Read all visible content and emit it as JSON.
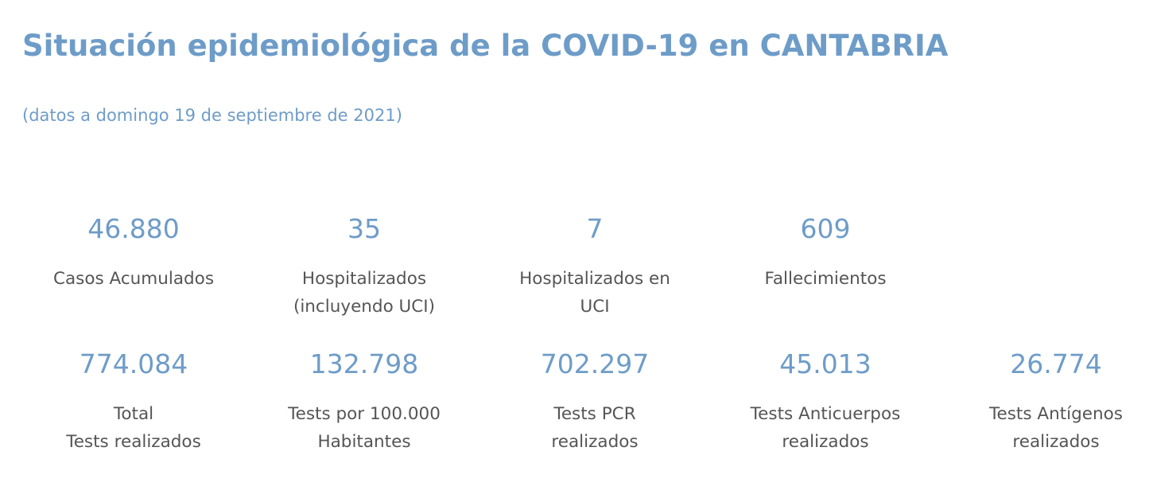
{
  "header": {
    "title": "Situación epidemiológica de la COVID-19 en CANTABRIA",
    "subtitle": "(datos a domingo 19 de septiembre de 2021)"
  },
  "stats": {
    "row1": [
      {
        "value": "46.880",
        "label_line1": "Casos Acumulados",
        "label_line2": ""
      },
      {
        "value": "35",
        "label_line1": "Hospitalizados",
        "label_line2": "(incluyendo UCI)"
      },
      {
        "value": "7",
        "label_line1": "Hospitalizados en",
        "label_line2": "UCI"
      },
      {
        "value": "609",
        "label_line1": "Fallecimientos",
        "label_line2": ""
      }
    ],
    "row2": [
      {
        "value": "774.084",
        "label_line1": "Total",
        "label_line2": "Tests realizados"
      },
      {
        "value": "132.798",
        "label_line1": "Tests por 100.000",
        "label_line2": "Habitantes"
      },
      {
        "value": "702.297",
        "label_line1": "Tests PCR",
        "label_line2": "realizados"
      },
      {
        "value": "45.013",
        "label_line1": "Tests Anticuerpos",
        "label_line2": "realizados"
      },
      {
        "value": "26.774",
        "label_line1": "Tests Antígenos",
        "label_line2": "realizados"
      }
    ]
  },
  "colors": {
    "accent": "#6e9cc8",
    "label_text": "#555555",
    "background": "#ffffff"
  }
}
